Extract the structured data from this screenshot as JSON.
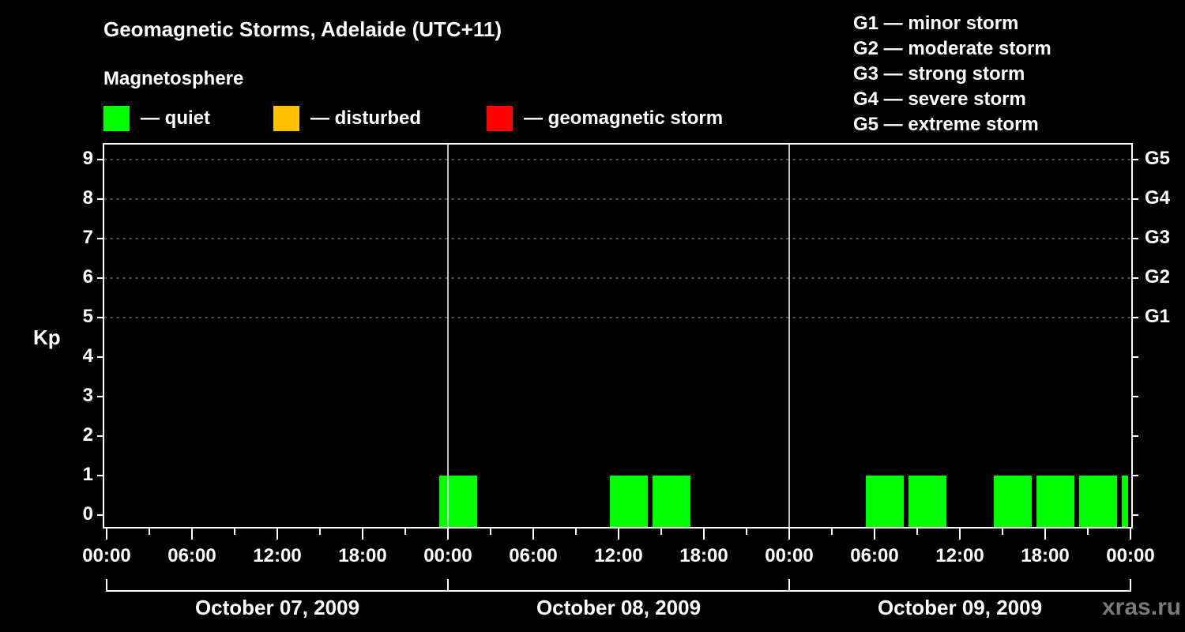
{
  "header": {
    "title": "Geomagnetic Storms, Adelaide (UTC+11)",
    "subtitle": "Magnetosphere"
  },
  "legend": [
    {
      "color": "#00ff00",
      "label": "— quiet"
    },
    {
      "color": "#ffc000",
      "label": "— disturbed"
    },
    {
      "color": "#ff0000",
      "label": "— geomagnetic storm"
    }
  ],
  "g_legend": [
    "G1 — minor storm",
    "G2 — moderate storm",
    "G3 — strong storm",
    "G4 — severe storm",
    "G5 — extreme storm"
  ],
  "watermark": "xras.ru",
  "chart_data": {
    "type": "bar",
    "title": "Geomagnetic Storms, Adelaide (UTC+11)",
    "xlabel": "",
    "ylabel": "Kp",
    "ylim": [
      0,
      9
    ],
    "yticks": [
      0,
      1,
      2,
      3,
      4,
      5,
      6,
      7,
      8,
      9
    ],
    "right_axis_labels": {
      "5": "G1",
      "6": "G2",
      "7": "G3",
      "8": "G4",
      "9": "G5"
    },
    "grid": "dashed horizontal at Kp 5-9",
    "xtick_labels": [
      "00:00",
      "06:00",
      "12:00",
      "18:00",
      "00:00",
      "06:00",
      "12:00",
      "18:00",
      "00:00",
      "06:00",
      "12:00",
      "18:00",
      "00:00"
    ],
    "dates": [
      "October 07, 2009",
      "October 08, 2009",
      "October 09, 2009"
    ],
    "bin_hours": 3,
    "bars": [
      {
        "start": "Oct 07 21:10",
        "hours_from_start": 23.17,
        "kp": 1,
        "status": "quiet"
      },
      {
        "start": "Oct 08 11:10",
        "hours_from_start": 35.17,
        "kp": 1,
        "status": "quiet"
      },
      {
        "start": "Oct 08 14:10",
        "hours_from_start": 38.17,
        "kp": 1,
        "status": "quiet"
      },
      {
        "start": "Oct 09 05:10",
        "hours_from_start": 53.17,
        "kp": 1,
        "status": "quiet"
      },
      {
        "start": "Oct 09 08:10",
        "hours_from_start": 56.17,
        "kp": 1,
        "status": "quiet"
      },
      {
        "start": "Oct 09 14:10",
        "hours_from_start": 62.17,
        "kp": 1,
        "status": "quiet"
      },
      {
        "start": "Oct 09 17:10",
        "hours_from_start": 65.17,
        "kp": 1,
        "status": "quiet"
      },
      {
        "start": "Oct 09 20:10",
        "hours_from_start": 68.17,
        "kp": 1,
        "status": "quiet"
      },
      {
        "start": "Oct 09 23:10",
        "hours_from_start": 71.17,
        "kp": 1,
        "status": "quiet",
        "partial": true
      }
    ],
    "colors": {
      "quiet": "#00ff00",
      "disturbed": "#ffc000",
      "storm": "#ff0000"
    }
  }
}
